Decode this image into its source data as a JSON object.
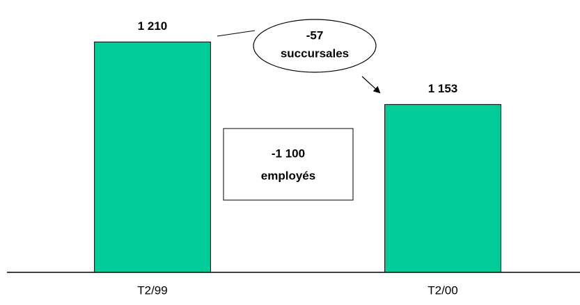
{
  "chart_data": {
    "type": "bar",
    "categories": [
      "T2/99",
      "T2/00"
    ],
    "values": [
      1210,
      1153
    ],
    "value_labels": [
      "1 210",
      "1 153"
    ],
    "color": "#00cc99",
    "ylim": [
      1000,
      1240
    ],
    "annotations": [
      {
        "lines": [
          "-57",
          "succursales"
        ]
      },
      {
        "lines": [
          "-1 100",
          "employés"
        ]
      }
    ]
  }
}
